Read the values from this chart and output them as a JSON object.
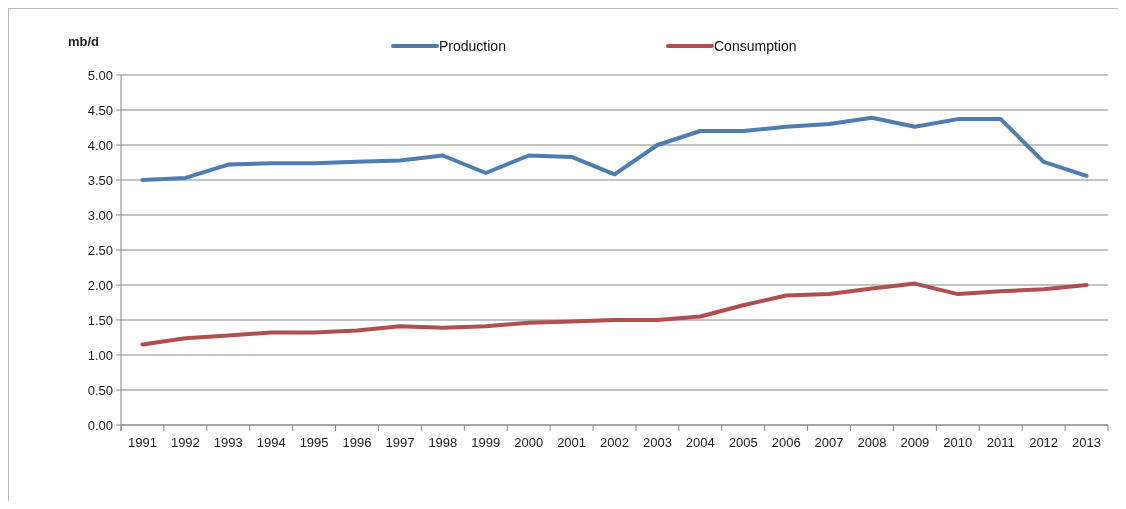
{
  "chart_data": {
    "type": "line",
    "ylabel": "mb/d",
    "categories": [
      "1991",
      "1992",
      "1993",
      "1994",
      "1995",
      "1996",
      "1997",
      "1998",
      "1999",
      "2000",
      "2001",
      "2002",
      "2003",
      "2004",
      "2005",
      "2006",
      "2007",
      "2008",
      "2009",
      "2010",
      "2011",
      "2012",
      "2013"
    ],
    "series": [
      {
        "name": "Production",
        "color": "#4f7db0",
        "values": [
          3.5,
          3.53,
          3.72,
          3.74,
          3.74,
          3.76,
          3.78,
          3.85,
          3.6,
          3.85,
          3.83,
          3.58,
          4.0,
          4.2,
          4.2,
          4.26,
          4.3,
          4.39,
          4.26,
          4.37,
          4.37,
          3.76,
          3.56
        ]
      },
      {
        "name": "Consumption",
        "color": "#b04f4f",
        "values": [
          1.15,
          1.24,
          1.28,
          1.32,
          1.32,
          1.35,
          1.41,
          1.39,
          1.41,
          1.46,
          1.48,
          1.5,
          1.5,
          1.55,
          1.71,
          1.85,
          1.87,
          1.95,
          2.02,
          1.87,
          1.91,
          1.94,
          2.0
        ]
      }
    ],
    "ylim": [
      0,
      5
    ],
    "yticks": [
      {
        "value": 0,
        "label": "0.00"
      },
      {
        "value": 0.5,
        "label": "0.50"
      },
      {
        "value": 1,
        "label": "1.00"
      },
      {
        "value": 1.5,
        "label": "1.50"
      },
      {
        "value": 2,
        "label": "2.00"
      },
      {
        "value": 2.5,
        "label": "2.50"
      },
      {
        "value": 3,
        "label": "3.00"
      },
      {
        "value": 3.5,
        "label": "3.50"
      },
      {
        "value": 4,
        "label": "4.00"
      },
      {
        "value": 4.5,
        "label": "4.50"
      },
      {
        "value": 5,
        "label": "5.00"
      }
    ],
    "grid": "y",
    "legend": "top",
    "marker": "none",
    "line_style": "solid"
  }
}
